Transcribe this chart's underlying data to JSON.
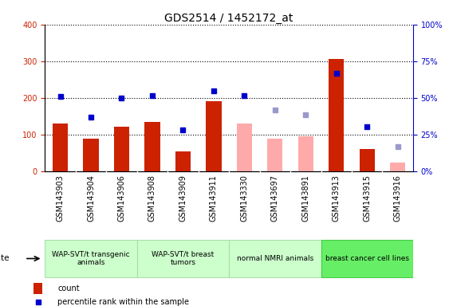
{
  "title": "GDS2514 / 1452172_at",
  "samples": [
    "GSM143903",
    "GSM143904",
    "GSM143906",
    "GSM143908",
    "GSM143909",
    "GSM143911",
    "GSM143330",
    "GSM143697",
    "GSM143891",
    "GSM143913",
    "GSM143915",
    "GSM143916"
  ],
  "count_values": [
    130,
    90,
    122,
    135,
    55,
    190,
    null,
    null,
    null,
    305,
    60,
    null
  ],
  "count_absent_values": [
    null,
    null,
    null,
    null,
    null,
    null,
    130,
    90,
    95,
    null,
    null,
    25
  ],
  "rank_values": [
    205,
    147,
    200,
    207,
    113,
    220,
    207,
    null,
    null,
    267,
    122,
    null
  ],
  "rank_absent_values": [
    null,
    null,
    null,
    null,
    null,
    null,
    null,
    168,
    155,
    null,
    null,
    68
  ],
  "groups": [
    {
      "label": "WAP-SVT/t transgenic\nanimals",
      "start": 0,
      "end": 3,
      "color": "#ccffcc",
      "border": "#aaddaa"
    },
    {
      "label": "WAP-SVT/t breast\ntumors",
      "start": 3,
      "end": 6,
      "color": "#ccffcc",
      "border": "#aaddaa"
    },
    {
      "label": "normal NMRI animals",
      "start": 6,
      "end": 9,
      "color": "#ccffcc",
      "border": "#aaddaa"
    },
    {
      "label": "breast cancer cell lines",
      "start": 9,
      "end": 12,
      "color": "#66ee66",
      "border": "#44cc44"
    }
  ],
  "left_ylim": [
    0,
    400
  ],
  "right_ylim": [
    0,
    100
  ],
  "left_yticks": [
    0,
    100,
    200,
    300,
    400
  ],
  "right_yticks": [
    0,
    25,
    50,
    75,
    100
  ],
  "right_yticklabels": [
    "0%",
    "25%",
    "50%",
    "75%",
    "100%"
  ],
  "count_color": "#cc2200",
  "count_absent_color": "#ffaaaa",
  "rank_color": "#0000cc",
  "rank_absent_color": "#9999cc",
  "xtick_bg_color": "#d8d8d8",
  "title_fontsize": 10,
  "tick_fontsize": 7,
  "bar_width": 0.5
}
